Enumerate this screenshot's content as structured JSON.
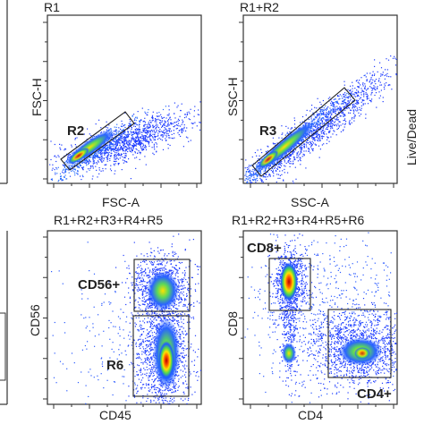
{
  "chart_data": [
    {
      "type": "density_scatter",
      "title": "R1",
      "xlabel": "FSC-A",
      "ylabel": "FSC-H",
      "gate": {
        "name": "R2",
        "shape": "rotated-rectangle"
      },
      "populations": [
        {
          "center": [
            0.25,
            0.2
          ],
          "spread": [
            0.18,
            0.05
          ],
          "angle_deg": 38,
          "density": "diagonal-stream"
        }
      ]
    },
    {
      "type": "density_scatter",
      "title": "R1+R2",
      "xlabel": "SSC-A",
      "ylabel": "SSC-H",
      "gate": {
        "name": "R3",
        "shape": "rotated-rectangle"
      },
      "populations": [
        {
          "center": [
            0.35,
            0.3
          ],
          "spread": [
            0.3,
            0.05
          ],
          "angle_deg": 42,
          "density": "diagonal-stream"
        }
      ]
    },
    {
      "type": "density_scatter",
      "title": "R1+R2+R3+R4+R5",
      "xlabel": "CD45",
      "ylabel": "CD56",
      "gates": [
        {
          "name": "CD56+",
          "shape": "rectangle"
        },
        {
          "name": "R6",
          "shape": "rectangle"
        }
      ],
      "populations": [
        {
          "label": "CD56+",
          "center": [
            0.63,
            0.74
          ],
          "density": "high"
        },
        {
          "label": "R6",
          "center": [
            0.66,
            0.27
          ],
          "density": "very-high"
        }
      ]
    },
    {
      "type": "density_scatter",
      "title": "R1+R2+R3+R4+R5+R6",
      "xlabel": "CD4",
      "ylabel": "CD8",
      "gates": [
        {
          "name": "CD8+",
          "shape": "rectangle"
        },
        {
          "name": "CD4+",
          "shape": "rectangle"
        }
      ],
      "populations": [
        {
          "label": "CD8+",
          "center": [
            0.3,
            0.78
          ],
          "density": "very-high"
        },
        {
          "label": "CD4+",
          "center": [
            0.8,
            0.25
          ],
          "density": "high"
        }
      ]
    }
  ],
  "side_label": "Live/Dead"
}
